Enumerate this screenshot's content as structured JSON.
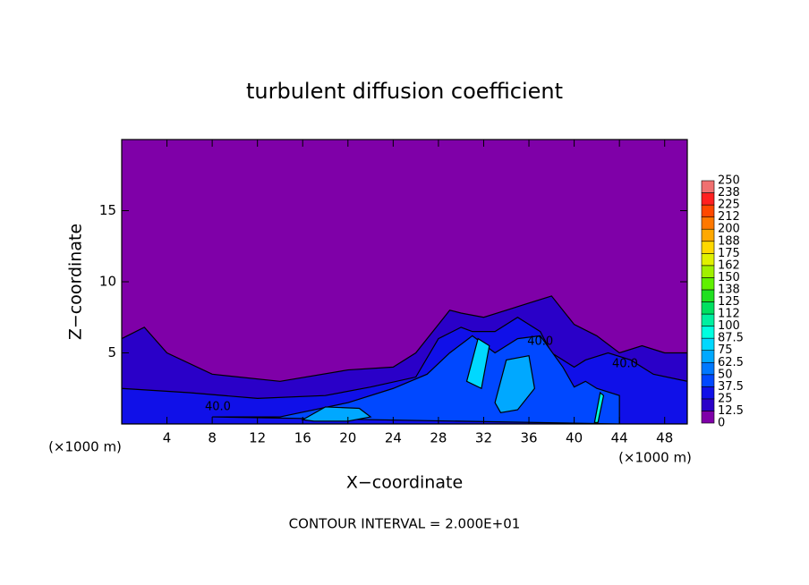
{
  "chart_data": {
    "type": "contour",
    "title": "turbulent diffusion coefficient",
    "x_label": "X−coordinate",
    "y_label": "Z−coordinate",
    "x_unit_label": "(×1000 m)",
    "footer": "CONTOUR INTERVAL = 2.000E+01",
    "xlim": [
      0,
      50
    ],
    "ylim": [
      0,
      20
    ],
    "xticks": [
      4,
      8,
      12,
      16,
      20,
      24,
      28,
      32,
      36,
      40,
      44,
      48
    ],
    "yticks": [
      5,
      10,
      15
    ],
    "background_color": "#7f00a8",
    "colorbar": {
      "levels": [
        0,
        12.5,
        25,
        37.5,
        50,
        62.5,
        75,
        87.5,
        100,
        {
          "value": 112.5,
          "label": "112"
        },
        125,
        {
          "value": 137.5,
          "label": "138"
        },
        150,
        {
          "value": 162.5,
          "label": "162"
        },
        175,
        {
          "value": 187.5,
          "label": "188"
        },
        200,
        {
          "value": 212.5,
          "label": "212"
        },
        225,
        {
          "value": 237.5,
          "label": "238"
        },
        250
      ],
      "colors": [
        "#7f00a8",
        "#2a00c8",
        "#1010e8",
        "#0048ff",
        "#0078ff",
        "#00a8ff",
        "#00d8ff",
        "#00ffe0",
        "#00f0a0",
        "#00e060",
        "#20e020",
        "#60f000",
        "#a0f000",
        "#e0f000",
        "#ffd800",
        "#ffa800",
        "#ff7800",
        "#ff4800",
        "#ff2020",
        "#f07070"
      ]
    },
    "regions": [
      {
        "level": 12.5,
        "x": [
          0,
          0,
          2,
          4,
          8,
          14,
          20,
          24,
          26,
          28,
          29,
          30,
          32,
          34,
          36,
          38,
          40,
          42,
          44,
          46,
          48,
          50,
          50
        ],
        "z": [
          0,
          6,
          6.8,
          5,
          3.5,
          3,
          3.8,
          4,
          5,
          7,
          8,
          7.8,
          7.5,
          8,
          8.5,
          9,
          7,
          6.2,
          5,
          5.5,
          5,
          5,
          0
        ]
      },
      {
        "level": 25,
        "x": [
          0,
          0,
          6,
          12,
          18,
          22,
          26,
          28,
          30,
          31,
          33,
          35,
          37,
          38,
          40,
          41,
          43,
          45,
          47,
          50,
          50
        ],
        "z": [
          0,
          2.5,
          2.2,
          1.8,
          2,
          2.6,
          3.3,
          6,
          6.8,
          6.5,
          6.5,
          7.5,
          6.5,
          5,
          4,
          4.5,
          5,
          4.5,
          3.5,
          3,
          0
        ]
      },
      {
        "level": 37.5,
        "x": [
          8,
          14,
          20,
          24,
          27,
          29,
          31,
          33,
          35,
          37,
          39,
          40,
          41,
          42,
          44,
          44
        ],
        "z": [
          0.5,
          0.5,
          1.5,
          2.5,
          3.5,
          5,
          6.2,
          5,
          6,
          6.2,
          4,
          2.6,
          3,
          2.5,
          2,
          0
        ]
      },
      {
        "level": 62.5,
        "x": [
          16,
          18,
          21,
          22,
          20,
          17
        ],
        "z": [
          0.3,
          1.2,
          1.1,
          0.5,
          0.2,
          0.2
        ]
      },
      {
        "level": 62.5,
        "x": [
          33,
          34,
          36,
          36.5,
          35,
          33.5
        ],
        "z": [
          1.5,
          4.5,
          4.8,
          2.5,
          1,
          0.8
        ]
      },
      {
        "level": 75,
        "x": [
          30.5,
          31.5,
          32.5,
          31.8
        ],
        "z": [
          3,
          6,
          5.5,
          2.5
        ]
      },
      {
        "level": 87.5,
        "x": [
          41.8,
          42.3,
          42.6,
          42.1
        ],
        "z": [
          0.1,
          2.2,
          2,
          0.1
        ]
      }
    ],
    "contour_labels": [
      {
        "text": "40.0",
        "x": 8.5,
        "z": 1.2
      },
      {
        "text": "40.0",
        "x": 37,
        "z": 5.8
      },
      {
        "text": "40.0",
        "x": 44.5,
        "z": 4.2
      }
    ]
  }
}
